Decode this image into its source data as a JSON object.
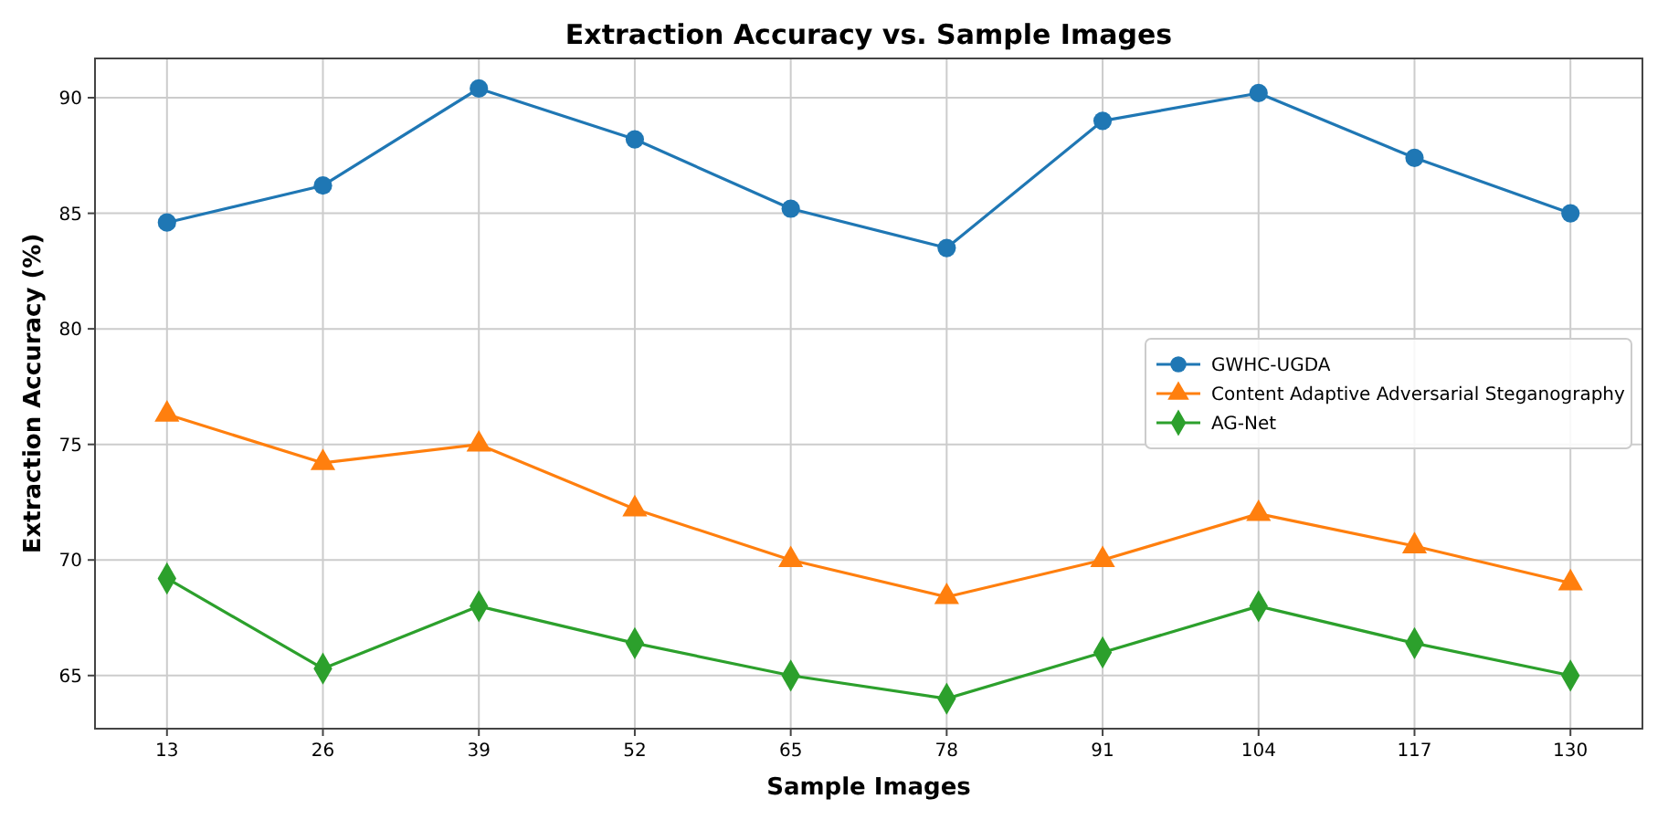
{
  "chart_data": {
    "type": "line",
    "title": "Extraction Accuracy vs. Sample Images",
    "xlabel": "Sample Images",
    "ylabel": "Extraction Accuracy (%)",
    "x": [
      13,
      26,
      39,
      52,
      65,
      78,
      91,
      104,
      117,
      130
    ],
    "xlim": [
      7,
      136
    ],
    "xticks": [
      13,
      26,
      39,
      52,
      65,
      78,
      91,
      104,
      117,
      130
    ],
    "ylim": [
      62.7,
      91.7
    ],
    "yticks": [
      65,
      70,
      75,
      80,
      85,
      90
    ],
    "grid": true,
    "legend": "right",
    "line_style": "solid",
    "series": [
      {
        "name": "GWHC-UGDA",
        "color": "#1f77b4",
        "marker": "circle",
        "values": [
          84.6,
          86.2,
          90.4,
          88.2,
          85.2,
          83.5,
          89.0,
          90.2,
          87.4,
          85.0
        ]
      },
      {
        "name": "Content Adaptive Adversarial Steganography",
        "color": "#ff7f0e",
        "marker": "triangle",
        "values": [
          76.3,
          74.2,
          75.0,
          72.2,
          70.0,
          68.4,
          70.0,
          72.0,
          70.6,
          69.0
        ]
      },
      {
        "name": "AG-Net",
        "color": "#2ca02c",
        "marker": "diamond",
        "values": [
          69.2,
          65.3,
          68.0,
          66.4,
          65.0,
          64.0,
          66.0,
          68.0,
          66.4,
          65.0
        ]
      }
    ]
  }
}
